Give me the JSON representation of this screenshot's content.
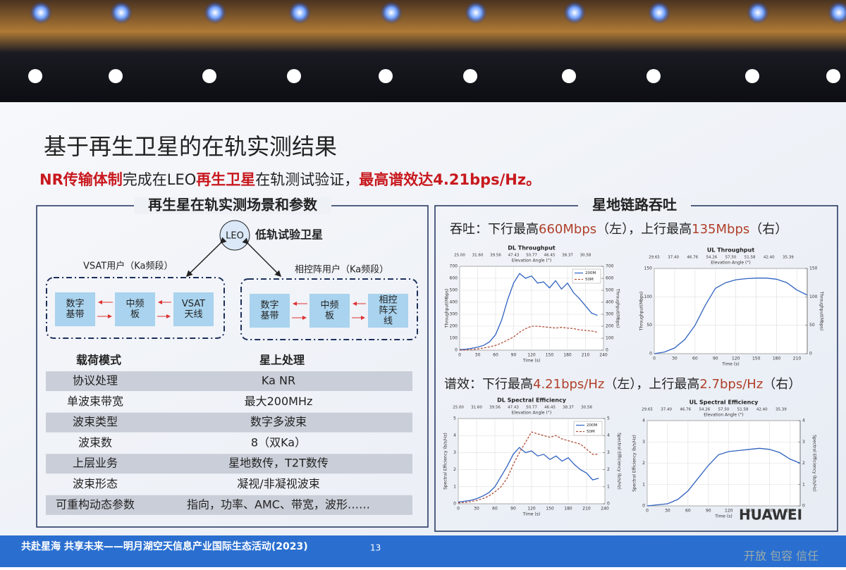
{
  "header": {
    "title": "基于再生卫星的在轨实测结果",
    "subtitle": [
      "NR传输体制",
      "完成在LEO",
      "再生卫星",
      "在轨测试验证，",
      "最高谱效达4.21bps/Hz。"
    ]
  },
  "left_panel": {
    "heading": "再生星在轨实测场景和参数",
    "satellite": "LEO",
    "satellite_label": "低轨试验卫星",
    "vsat_user": "VSAT用户（Ka频段）",
    "array_user": "相控阵用户（Ka频段）",
    "vsat_blocks": [
      [
        "数字",
        "基带"
      ],
      [
        "中频",
        "板"
      ],
      [
        "VSAT",
        "天线"
      ]
    ],
    "array_blocks": [
      [
        "数字",
        "基带"
      ],
      [
        "中频",
        "板"
      ],
      [
        "相控",
        "阵天",
        "线"
      ]
    ],
    "table": {
      "header": [
        "载荷模式",
        "星上处理"
      ],
      "rows": [
        [
          "协议处理",
          "Ka NR"
        ],
        [
          "单波束带宽",
          "最大200MHz"
        ],
        [
          "波束类型",
          "数字多波束"
        ],
        [
          "波束数",
          "8（双Ka）"
        ],
        [
          "上层业务",
          "星地数传，T2T数传"
        ],
        [
          "波束形态",
          "凝视/非凝视波束"
        ],
        [
          "可重构动态参数",
          "指向，功率、AMC、带宽，波形……"
        ]
      ]
    }
  },
  "right_panel": {
    "heading": "星地链路吞吐",
    "throughput_caption": [
      "吞吐：下行最高",
      "660Mbps",
      "（左），上行最高",
      "135Mbps",
      "（右）"
    ],
    "efficiency_caption": [
      "谱效：下行最高",
      "4.21bps/Hz",
      "（左），上行最高",
      "2.7bps/Hz",
      "（右）"
    ]
  },
  "chart_data": [
    {
      "type": "line",
      "title": "DL Throughput",
      "top_label": "Elevation Angle (°)",
      "top_ticks": [
        "25.00",
        "31.60",
        "39.56",
        "47.43",
        "50.77",
        "46.45",
        "38.37",
        "30.58"
      ],
      "xlabel": "Time (s)",
      "ylabel": "Throughput(Mbps)",
      "y2label": "Throughput(Mbps)",
      "x": [
        0,
        10,
        20,
        30,
        40,
        50,
        60,
        70,
        80,
        90,
        100,
        110,
        120,
        130,
        140,
        150,
        160,
        170,
        180,
        190,
        200,
        210,
        220,
        230
      ],
      "xlim": [
        0,
        240
      ],
      "xticks": [
        0,
        30,
        60,
        90,
        120,
        150,
        180,
        210,
        240
      ],
      "ylim": [
        0,
        700
      ],
      "yticks": [
        0,
        100,
        200,
        300,
        400,
        500,
        600,
        700
      ],
      "y2lim": [
        0,
        700
      ],
      "y2ticks": [
        0,
        100,
        200,
        300,
        400,
        500,
        600,
        700
      ],
      "grid": true,
      "legend": "upper right",
      "series": [
        {
          "name": "200M",
          "color": "#2f62c0",
          "values": [
            5,
            8,
            15,
            25,
            40,
            70,
            130,
            250,
            420,
            560,
            640,
            600,
            620,
            560,
            570,
            520,
            580,
            510,
            560,
            480,
            430,
            370,
            310,
            290
          ]
        },
        {
          "name": "50M",
          "color": "#b0503a",
          "dashed": true,
          "values": [
            0,
            2,
            5,
            10,
            18,
            28,
            40,
            60,
            85,
            110,
            150,
            180,
            200,
            200,
            195,
            190,
            185,
            190,
            185,
            180,
            170,
            165,
            160,
            150
          ]
        }
      ]
    },
    {
      "type": "line",
      "title": "UL Throughput",
      "top_label": "Elevation Angle (°)",
      "top_ticks": [
        "29.65",
        "37.40",
        "46.76",
        "54.26",
        "57.50",
        "51.58",
        "42.40",
        "35.39"
      ],
      "xlabel": "Time (s)",
      "ylabel": "Throughput(Mbps)",
      "y2label": "Throughput(Mbps)",
      "x": [
        0,
        15,
        30,
        45,
        60,
        75,
        90,
        105,
        120,
        135,
        150,
        165,
        180,
        195,
        210,
        225
      ],
      "xlim": [
        0,
        225
      ],
      "xticks": [
        0,
        30,
        60,
        90,
        120,
        150,
        180,
        210
      ],
      "ylim": [
        0,
        150
      ],
      "yticks": [
        0,
        50,
        100,
        150
      ],
      "y2lim": [
        0,
        150
      ],
      "y2ticks": [
        0,
        50,
        100,
        150
      ],
      "grid": true,
      "series": [
        {
          "color": "#2f62c0",
          "values": [
            0,
            3,
            10,
            25,
            50,
            85,
            115,
            125,
            130,
            132,
            133,
            133,
            131,
            125,
            112,
            103
          ]
        }
      ]
    },
    {
      "type": "line",
      "title": "DL Spectral Efficiency",
      "top_label": "Elevation Angle (°)",
      "top_ticks": [
        "25.00",
        "31.60",
        "39.56",
        "47.43",
        "50.77",
        "46.45",
        "38.37",
        "30.58"
      ],
      "xlabel": "Time (s)",
      "ylabel": "Spectral Efficiency (b/s/Hz)",
      "y2label": "Spectral Efficiency (b/s/Hz)",
      "x": [
        0,
        10,
        20,
        30,
        40,
        50,
        60,
        70,
        80,
        90,
        100,
        110,
        120,
        130,
        140,
        150,
        160,
        170,
        180,
        190,
        200,
        210,
        220,
        230
      ],
      "xlim": [
        0,
        240
      ],
      "xticks": [
        0,
        30,
        60,
        90,
        120,
        150,
        180,
        210,
        240
      ],
      "ylim": [
        0,
        5
      ],
      "yticks": [
        0,
        1,
        2,
        3,
        4,
        5
      ],
      "y2lim": [
        0,
        5
      ],
      "y2ticks": [
        0,
        1,
        2,
        3,
        4,
        5
      ],
      "grid": true,
      "legend": "upper right",
      "series": [
        {
          "name": "200M",
          "color": "#2f62c0",
          "values": [
            0.1,
            0.15,
            0.2,
            0.3,
            0.45,
            0.65,
            1.0,
            1.6,
            2.2,
            2.9,
            3.3,
            3.0,
            3.1,
            2.8,
            2.9,
            2.6,
            2.8,
            2.5,
            2.7,
            2.3,
            2.0,
            1.8,
            1.4,
            1.5
          ]
        },
        {
          "name": "50M",
          "color": "#b0503a",
          "dashed": true,
          "values": [
            0.05,
            0.08,
            0.12,
            0.2,
            0.3,
            0.45,
            0.7,
            1.0,
            1.5,
            2.3,
            3.0,
            3.6,
            4.21,
            4.1,
            4.0,
            3.9,
            4.0,
            3.8,
            3.7,
            3.6,
            3.5,
            3.2,
            2.9,
            2.9
          ]
        }
      ]
    },
    {
      "type": "line",
      "title": "UL Spectral Efficiency",
      "top_label": "Elevation Angle (°)",
      "top_ticks": [
        "29.65",
        "37.40",
        "46.76",
        "54.26",
        "57.50",
        "51.58",
        "42.40",
        "35.39"
      ],
      "xlabel": "Time (s)",
      "ylabel": "Spectral Efficiency (b/s/Hz)",
      "y2label": "Spectral Efficiency (b/s/Hz)",
      "x": [
        0,
        15,
        30,
        45,
        60,
        75,
        90,
        105,
        120,
        135,
        150,
        165,
        180,
        195,
        210,
        225
      ],
      "xlim": [
        0,
        225
      ],
      "xticks": [
        0,
        30,
        60,
        90,
        120,
        150,
        180,
        210
      ],
      "ylim": [
        0,
        4
      ],
      "yticks": [
        0,
        1,
        2,
        3,
        4
      ],
      "y2lim": [
        0,
        4
      ],
      "y2ticks": [
        0,
        1,
        2,
        3,
        4
      ],
      "grid": true,
      "series": [
        {
          "color": "#2f62c0",
          "values": [
            0,
            0.05,
            0.1,
            0.3,
            0.7,
            1.3,
            1.9,
            2.4,
            2.55,
            2.6,
            2.65,
            2.7,
            2.65,
            2.5,
            2.2,
            2.0
          ]
        }
      ]
    }
  ],
  "footer": {
    "slogan": "共赴星海 共享未来——明月湖空天信息产业国际生态活动(2023)",
    "page": "13",
    "motto": "开放 包容 信任",
    "logo": "HUAWEI"
  }
}
